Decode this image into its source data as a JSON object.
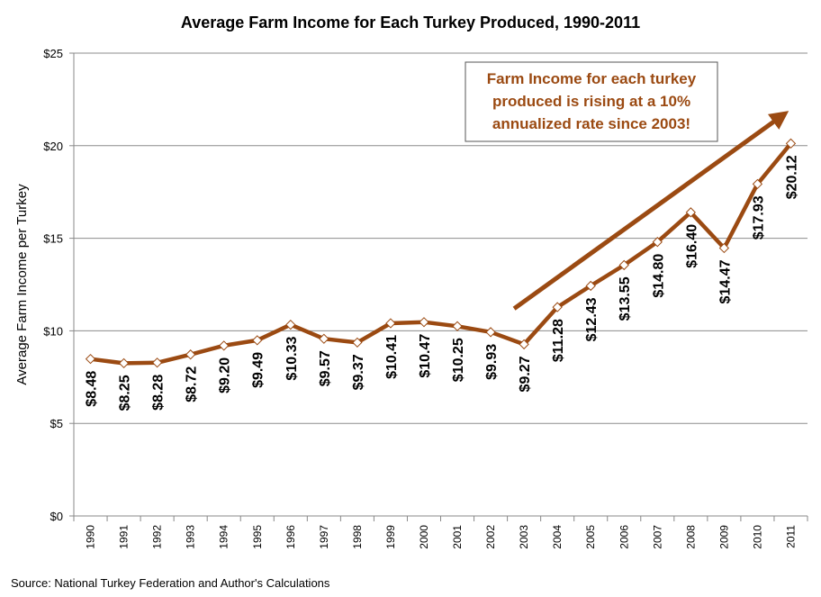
{
  "chart_data": {
    "type": "line",
    "title": "Average Farm Income for Each Turkey Produced, 1990-2011",
    "xlabel": "",
    "ylabel": "Average Farm Income per Turkey",
    "ylim": [
      0,
      25
    ],
    "yticks": [
      0,
      5,
      10,
      15,
      20,
      25
    ],
    "ytick_labels": [
      "$0",
      "$5",
      "$10",
      "$15",
      "$20",
      "$25"
    ],
    "grid": true,
    "categories": [
      "1990",
      "1991",
      "1992",
      "1993",
      "1994",
      "1995",
      "1996",
      "1997",
      "1998",
      "1999",
      "2000",
      "2001",
      "2002",
      "2003",
      "2004",
      "2005",
      "2006",
      "2007",
      "2008",
      "2009",
      "2010",
      "2011"
    ],
    "series": [
      {
        "values": [
          8.48,
          8.25,
          8.28,
          8.72,
          9.2,
          9.49,
          10.33,
          9.57,
          9.37,
          10.41,
          10.47,
          10.25,
          9.93,
          9.27,
          11.28,
          12.43,
          13.55,
          14.8,
          16.4,
          14.47,
          17.93,
          20.12
        ],
        "labels": [
          "$8.48",
          "$8.25",
          "$8.28",
          "$8.72",
          "$9.20",
          "$9.49",
          "$10.33",
          "$9.57",
          "$9.37",
          "$10.41",
          "$10.47",
          "$10.25",
          "$9.93",
          "$9.27",
          "$11.28",
          "$12.43",
          "$13.55",
          "$14.80",
          "$16.40",
          "$14.47",
          "$17.93",
          "$20.12"
        ],
        "color": "#9b4a12"
      }
    ],
    "annotation": {
      "lines": [
        "Farm Income for each turkey",
        "produced is rising at a 10%",
        "annualized rate since 2003!"
      ],
      "color": "#9b4a12",
      "arrow_from": [
        "2003",
        11.2
      ],
      "arrow_to": [
        "2010.8",
        21.7
      ]
    },
    "source": "Source: National Turkey Federation and Author's Calculations"
  }
}
